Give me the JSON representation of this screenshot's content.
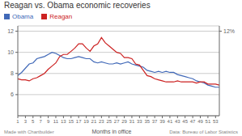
{
  "chart_data": {
    "type": "line",
    "title": "Reagan vs. Obama economic recoveries",
    "xlabel": "Months in office",
    "annotations": [
      "Made with Chartbuilder",
      "Data: Bureau of Labor Statistics"
    ],
    "x": [
      1,
      2,
      3,
      4,
      5,
      6,
      7,
      8,
      9,
      10,
      11,
      12,
      13,
      14,
      15,
      16,
      17,
      18,
      19,
      20,
      21,
      22,
      23,
      24,
      25,
      26,
      27,
      28,
      29,
      30,
      31,
      32,
      33,
      34,
      35,
      36,
      37,
      38,
      39,
      40,
      41,
      42,
      43,
      44,
      45,
      46,
      47,
      48,
      49,
      50,
      51,
      52,
      53,
      54
    ],
    "series": [
      {
        "name": "Obama",
        "color": "#4169b8",
        "values": [
          7.8,
          8.1,
          8.5,
          8.9,
          9.0,
          9.4,
          9.5,
          9.6,
          9.8,
          10.0,
          9.9,
          9.7,
          9.5,
          9.4,
          9.4,
          9.5,
          9.6,
          9.5,
          9.4,
          9.4,
          9.1,
          9.0,
          9.1,
          9.0,
          8.9,
          8.9,
          9.0,
          8.9,
          9.0,
          9.1,
          8.9,
          8.8,
          8.7,
          8.6,
          8.3,
          8.2,
          8.1,
          8.2,
          8.1,
          8.2,
          8.1,
          8.1,
          7.9,
          7.8,
          7.7,
          7.6,
          7.5,
          7.3,
          7.2,
          7.1,
          6.9,
          6.8,
          6.7,
          6.7
        ]
      },
      {
        "name": "Reagan",
        "color": "#cc2222",
        "values": [
          7.5,
          7.4,
          7.4,
          7.3,
          7.5,
          7.6,
          7.8,
          8.0,
          8.4,
          8.7,
          9.0,
          9.6,
          9.8,
          9.8,
          10.1,
          10.4,
          10.8,
          10.8,
          10.4,
          10.1,
          10.6,
          10.8,
          11.4,
          10.9,
          10.6,
          10.3,
          10.0,
          9.9,
          9.5,
          9.5,
          9.4,
          8.9,
          8.8,
          8.3,
          7.8,
          7.7,
          7.5,
          7.4,
          7.3,
          7.2,
          7.2,
          7.2,
          7.3,
          7.2,
          7.2,
          7.2,
          7.2,
          7.1,
          7.2,
          7.2,
          7.0,
          7.0,
          7.0,
          6.9
        ]
      }
    ],
    "xlim": [
      1,
      54
    ],
    "xticks": [
      1,
      3,
      5,
      7,
      9,
      11,
      13,
      15,
      17,
      19,
      21,
      23,
      25,
      27,
      29,
      31,
      33,
      35,
      37,
      39,
      41,
      43,
      45,
      47,
      49,
      51,
      53
    ],
    "ylim": [
      4,
      12.5
    ],
    "yticks": [
      6,
      8,
      10,
      12
    ],
    "y2lim": [
      4,
      12.5
    ],
    "y2ticks": [
      {
        "value": 12,
        "label": "12%"
      }
    ],
    "grid": true,
    "legend": "top"
  }
}
